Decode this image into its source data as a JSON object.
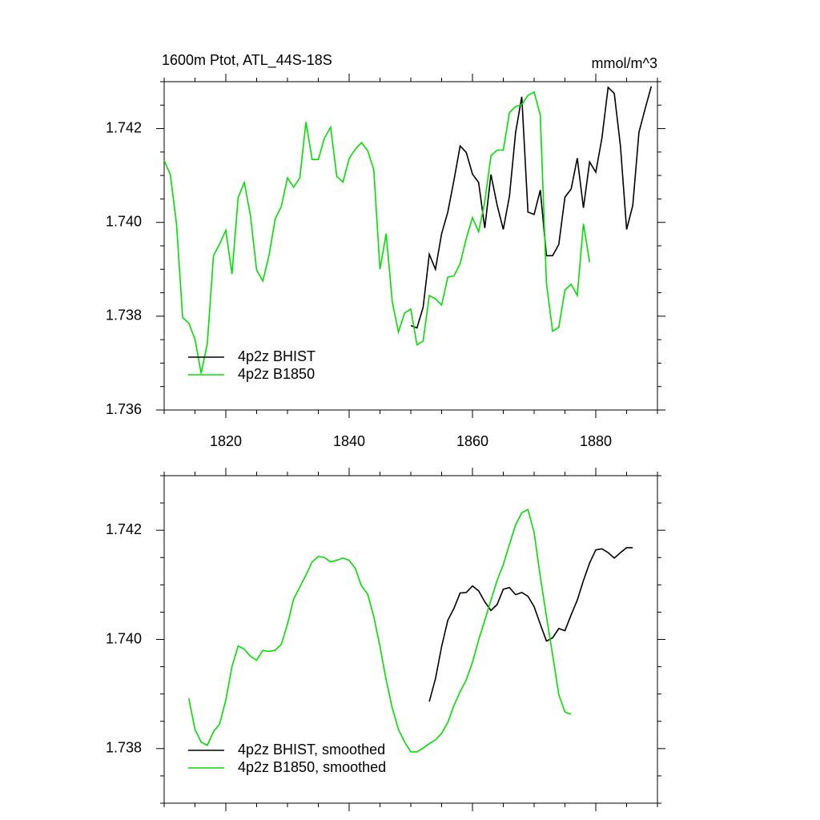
{
  "chart_data": [
    {
      "type": "line",
      "title": "1600m Ptot, ATL_44S-18S",
      "subtitle": "mmol/m^3",
      "legend": "lower left",
      "grid": false,
      "xlim": [
        1810,
        1890
      ],
      "xticks": [
        1820,
        1840,
        1860,
        1880
      ],
      "xtick_labels": true,
      "ylim": [
        1.736,
        1.743
      ],
      "yticks": [
        1.736,
        1.738,
        {
          "value": 1.74,
          "label": "1.740"
        },
        1.742
      ],
      "x": [
        1810,
        1811,
        1812,
        1813,
        1814,
        1815,
        1816,
        1817,
        1818,
        1819,
        1820,
        1821,
        1822,
        1823,
        1824,
        1825,
        1826,
        1827,
        1828,
        1829,
        1830,
        1831,
        1832,
        1833,
        1834,
        1835,
        1836,
        1837,
        1838,
        1839,
        1840,
        1841,
        1842,
        1843,
        1844,
        1845,
        1846,
        1847,
        1848,
        1849,
        1850,
        1851,
        1852,
        1853,
        1854,
        1855,
        1856,
        1857,
        1858,
        1859,
        1860,
        1861,
        1862,
        1863,
        1864,
        1865,
        1866,
        1867,
        1868,
        1869,
        1870,
        1871,
        1872,
        1873,
        1874,
        1875,
        1876,
        1877,
        1878,
        1879,
        1880,
        1881,
        1882,
        1883,
        1884,
        1885,
        1886,
        1887,
        1888,
        1889
      ],
      "series": [
        {
          "name": "4p2z BHIST",
          "color": "#000000",
          "values": [
            null,
            null,
            null,
            null,
            null,
            null,
            null,
            null,
            null,
            null,
            null,
            null,
            null,
            null,
            null,
            null,
            null,
            null,
            null,
            null,
            null,
            null,
            null,
            null,
            null,
            null,
            null,
            null,
            null,
            null,
            null,
            null,
            null,
            null,
            null,
            null,
            null,
            null,
            null,
            null,
            1.7378,
            1.73775,
            1.73819,
            1.73932,
            1.739,
            1.73976,
            1.74022,
            1.7409,
            1.74163,
            1.74149,
            1.74103,
            1.74085,
            1.73988,
            1.74102,
            1.74037,
            1.73985,
            1.74056,
            1.74192,
            1.74268,
            1.74022,
            1.74017,
            1.74069,
            1.73929,
            1.73929,
            1.73953,
            1.74054,
            1.74071,
            1.74137,
            1.74031,
            1.74129,
            1.74107,
            1.7418,
            1.74288,
            1.74275,
            1.74163,
            1.73985,
            1.74036,
            1.74192,
            1.74242,
            1.7429
          ]
        },
        {
          "name": "4p2z B1850",
          "color": "#00e000",
          "values": [
            1.74132,
            1.74102,
            1.73997,
            1.73797,
            1.73785,
            1.73751,
            1.73678,
            1.73742,
            1.73929,
            1.73954,
            1.73983,
            1.7389,
            1.74053,
            1.74085,
            1.74014,
            1.73898,
            1.73875,
            1.73929,
            1.74007,
            1.74034,
            1.74095,
            1.74075,
            1.74095,
            1.74214,
            1.74134,
            1.74134,
            1.7418,
            1.74203,
            1.74098,
            1.74086,
            1.74136,
            1.74156,
            1.7417,
            1.74153,
            1.74112,
            1.739,
            1.73976,
            1.7383,
            1.73766,
            1.73807,
            1.73815,
            1.73739,
            1.73747,
            1.73844,
            1.73837,
            1.73824,
            1.73883,
            1.73886,
            1.73912,
            1.73966,
            1.7401,
            1.7398,
            1.74044,
            1.74142,
            1.74154,
            1.74154,
            1.74234,
            1.74247,
            1.74251,
            1.74271,
            1.74278,
            1.74229,
            1.7387,
            1.73768,
            1.73776,
            1.73856,
            1.73868,
            1.73844,
            1.73997,
            1.73915,
            null,
            null,
            null,
            null,
            null,
            null,
            null,
            null,
            null,
            null
          ]
        }
      ]
    },
    {
      "type": "line",
      "legend": "lower left",
      "grid": false,
      "xlim": [
        1810,
        1890
      ],
      "xticks": [
        1820,
        1840,
        1860,
        1880
      ],
      "xtick_labels": false,
      "ylim": [
        1.737,
        1.743
      ],
      "yticks": [
        1.738,
        {
          "value": 1.74,
          "label": "1.740"
        },
        1.742
      ],
      "x": [
        1814,
        1815,
        1816,
        1817,
        1818,
        1819,
        1820,
        1821,
        1822,
        1823,
        1824,
        1825,
        1826,
        1827,
        1828,
        1829,
        1830,
        1831,
        1832,
        1833,
        1834,
        1835,
        1836,
        1837,
        1838,
        1839,
        1840,
        1841,
        1842,
        1843,
        1844,
        1845,
        1846,
        1847,
        1848,
        1849,
        1850,
        1851,
        1852,
        1853,
        1854,
        1855,
        1856,
        1857,
        1858,
        1859,
        1860,
        1861,
        1862,
        1863,
        1864,
        1865,
        1866,
        1867,
        1868,
        1869,
        1870,
        1871,
        1872,
        1873,
        1874,
        1875,
        1876,
        1877,
        1878,
        1879,
        1880,
        1881,
        1882,
        1883,
        1884,
        1885,
        1886
      ],
      "series": [
        {
          "name": "4p2z BHIST, smoothed",
          "color": "#000000",
          "values": [
            null,
            null,
            null,
            null,
            null,
            null,
            null,
            null,
            null,
            null,
            null,
            null,
            null,
            null,
            null,
            null,
            null,
            null,
            null,
            null,
            null,
            null,
            null,
            null,
            null,
            null,
            null,
            null,
            null,
            null,
            null,
            null,
            null,
            null,
            null,
            null,
            null,
            null,
            null,
            1.73886,
            1.73928,
            1.73987,
            1.74035,
            1.74057,
            1.74085,
            1.74086,
            1.74098,
            1.74089,
            1.74069,
            1.74053,
            1.74064,
            1.74092,
            1.74095,
            1.74082,
            1.74086,
            1.74079,
            1.7406,
            1.74028,
            1.73997,
            1.74003,
            1.7402,
            1.74016,
            1.74045,
            1.74072,
            1.74108,
            1.7414,
            1.74164,
            1.74166,
            1.74159,
            1.74149,
            1.74159,
            1.74168,
            1.74168
          ]
        },
        {
          "name": "4p2z B1850, smoothed",
          "color": "#00e000",
          "values": [
            1.73892,
            1.73835,
            1.73812,
            1.73806,
            1.73831,
            1.73845,
            1.73889,
            1.7395,
            1.73988,
            1.73982,
            1.73969,
            1.73962,
            1.7398,
            1.73978,
            1.7398,
            1.73991,
            1.74028,
            1.74074,
            1.74096,
            1.74118,
            1.74142,
            1.74152,
            1.7415,
            1.74142,
            1.74145,
            1.74149,
            1.74145,
            1.7413,
            1.74098,
            1.74083,
            1.74042,
            1.73987,
            1.73926,
            1.73874,
            1.73835,
            1.73812,
            1.73794,
            1.73794,
            1.73801,
            1.73809,
            1.73816,
            1.73828,
            1.73848,
            1.73879,
            1.73904,
            1.73926,
            1.73958,
            1.73999,
            1.74035,
            1.74072,
            1.74108,
            1.74137,
            1.74174,
            1.7421,
            1.74232,
            1.74238,
            1.74196,
            1.74115,
            1.74042,
            1.73972,
            1.73899,
            1.73867,
            1.73863,
            null,
            null,
            null,
            null,
            null,
            null,
            null,
            null,
            null,
            null
          ]
        }
      ]
    }
  ]
}
